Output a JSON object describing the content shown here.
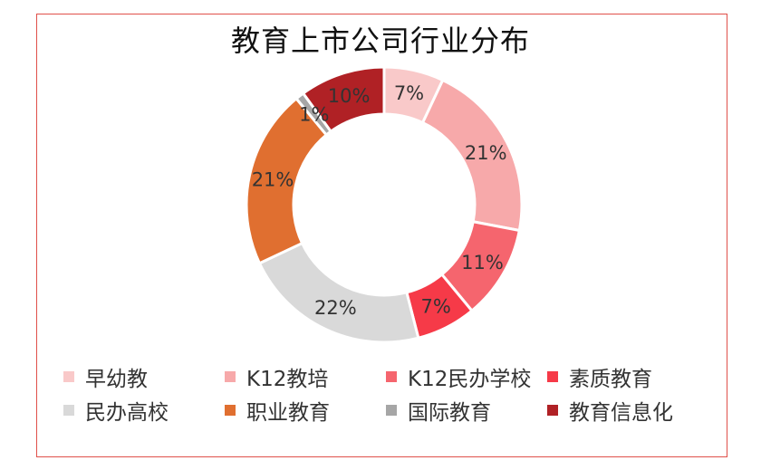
{
  "chart_data": {
    "type": "pie",
    "donut": true,
    "title": "教育上市公司行业分布",
    "categories": [
      "早幼教",
      "K12教培",
      "K12民办学校",
      "素质教育",
      "民办高校",
      "职业教育",
      "国际教育",
      "教育信息化"
    ],
    "values": [
      7,
      21,
      11,
      7,
      22,
      21,
      1,
      10
    ],
    "labels": [
      "7%",
      "21%",
      "11%",
      "7%",
      "22%",
      "21%",
      "1%",
      "10%"
    ],
    "colors": [
      "#f9c9c9",
      "#f7a9aa",
      "#f5656e",
      "#f63a48",
      "#d9d9d9",
      "#e06f30",
      "#a6a6a6",
      "#b02125"
    ],
    "legend_position": "bottom"
  },
  "frame_color": "#e0504a"
}
